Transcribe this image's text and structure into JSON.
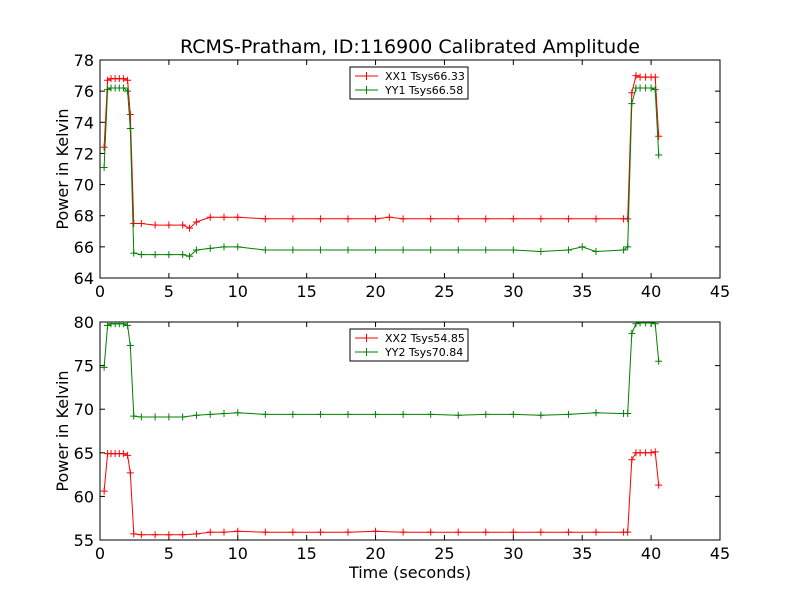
{
  "figure": {
    "title": "RCMS-Pratham, ID:116900 Calibrated Amplitude",
    "xlabel": "Time (seconds)"
  },
  "chart_data": [
    {
      "type": "line",
      "title": "RCMS-Pratham, ID:116900 Calibrated Amplitude",
      "xlabel": "",
      "ylabel": "Power in Kelvin",
      "xlim": [
        0,
        45
      ],
      "ylim": [
        64,
        78
      ],
      "xticks": [
        "0",
        "5",
        "10",
        "15",
        "20",
        "25",
        "30",
        "35",
        "40",
        "45"
      ],
      "yticks": [
        "64",
        "66",
        "68",
        "70",
        "72",
        "74",
        "76",
        "78"
      ],
      "grid": false,
      "legend_position": "top-center",
      "marker": "plus",
      "series": [
        {
          "name": "XX1 Tsys66.33",
          "color": "#ff0000",
          "x": [
            0.3,
            0.55,
            0.8,
            1.1,
            1.4,
            1.7,
            2.0,
            2.2,
            2.45,
            3.0,
            4.0,
            5.0,
            6.0,
            6.5,
            7.0,
            8.0,
            9.0,
            10.0,
            12.0,
            14.0,
            16.0,
            18.0,
            20.0,
            21.0,
            22.0,
            24.0,
            26.0,
            28.0,
            30.0,
            32.0,
            34.0,
            36.0,
            38.0,
            38.3,
            38.6,
            38.9,
            39.2,
            39.6,
            40.0,
            40.3,
            40.55
          ],
          "y": [
            72.4,
            76.7,
            76.8,
            76.8,
            76.8,
            76.8,
            76.7,
            74.5,
            67.5,
            67.5,
            67.4,
            67.4,
            67.4,
            67.2,
            67.6,
            67.9,
            67.9,
            67.9,
            67.8,
            67.8,
            67.8,
            67.8,
            67.8,
            67.9,
            67.8,
            67.8,
            67.8,
            67.8,
            67.8,
            67.8,
            67.8,
            67.8,
            67.8,
            67.8,
            75.9,
            77.0,
            76.9,
            76.9,
            76.9,
            76.9,
            73.1
          ]
        },
        {
          "name": "YY1 Tsys66.58",
          "color": "#008000",
          "x": [
            0.3,
            0.55,
            0.8,
            1.1,
            1.4,
            1.7,
            2.0,
            2.2,
            2.45,
            3.0,
            4.0,
            5.0,
            6.0,
            6.5,
            7.0,
            8.0,
            9.0,
            10.0,
            12.0,
            14.0,
            16.0,
            18.0,
            20.0,
            22.0,
            24.0,
            26.0,
            28.0,
            30.0,
            32.0,
            34.0,
            35.0,
            36.0,
            38.0,
            38.3,
            38.6,
            38.9,
            39.2,
            39.6,
            40.0,
            40.3,
            40.55
          ],
          "y": [
            71.1,
            76.1,
            76.2,
            76.2,
            76.2,
            76.2,
            76.0,
            73.6,
            65.6,
            65.5,
            65.5,
            65.5,
            65.5,
            65.4,
            65.8,
            65.9,
            66.0,
            66.0,
            65.8,
            65.8,
            65.8,
            65.8,
            65.8,
            65.8,
            65.8,
            65.8,
            65.8,
            65.8,
            65.7,
            65.8,
            66.0,
            65.7,
            65.8,
            66.0,
            75.2,
            76.2,
            76.2,
            76.2,
            76.2,
            76.1,
            71.9
          ]
        }
      ]
    },
    {
      "type": "line",
      "title": "",
      "xlabel": "Time (seconds)",
      "ylabel": "Power in Kelvin",
      "xlim": [
        0,
        45
      ],
      "ylim": [
        55,
        80
      ],
      "xticks": [
        "0",
        "5",
        "10",
        "15",
        "20",
        "25",
        "30",
        "35",
        "40",
        "45"
      ],
      "yticks": [
        "55",
        "60",
        "65",
        "70",
        "75",
        "80"
      ],
      "grid": false,
      "legend_position": "top-center",
      "marker": "plus",
      "series": [
        {
          "name": "XX2 Tsys54.85",
          "color": "#ff0000",
          "x": [
            0.3,
            0.55,
            0.8,
            1.1,
            1.4,
            1.7,
            2.0,
            2.2,
            2.45,
            3.0,
            4.0,
            5.0,
            6.0,
            7.0,
            8.0,
            9.0,
            10.0,
            12.0,
            14.0,
            16.0,
            18.0,
            20.0,
            22.0,
            24.0,
            26.0,
            28.0,
            30.0,
            32.0,
            34.0,
            36.0,
            38.0,
            38.3,
            38.6,
            38.9,
            39.2,
            39.6,
            40.0,
            40.3,
            40.55
          ],
          "y": [
            60.6,
            64.9,
            64.9,
            64.9,
            64.9,
            64.9,
            64.7,
            62.7,
            55.7,
            55.6,
            55.6,
            55.6,
            55.6,
            55.7,
            55.9,
            55.9,
            56.0,
            55.9,
            55.9,
            55.9,
            55.9,
            56.0,
            55.9,
            55.9,
            55.9,
            55.9,
            55.9,
            55.9,
            55.9,
            55.9,
            55.9,
            55.9,
            64.2,
            65.0,
            65.0,
            65.0,
            65.0,
            65.1,
            61.3
          ]
        },
        {
          "name": "YY2 Tsys70.84",
          "color": "#008000",
          "x": [
            0.3,
            0.55,
            0.8,
            1.1,
            1.4,
            1.7,
            2.0,
            2.2,
            2.45,
            3.0,
            4.0,
            5.0,
            6.0,
            7.0,
            8.0,
            9.0,
            10.0,
            12.0,
            14.0,
            16.0,
            18.0,
            20.0,
            22.0,
            24.0,
            26.0,
            28.0,
            30.0,
            32.0,
            34.0,
            36.0,
            38.0,
            38.3,
            38.6,
            38.9,
            39.2,
            39.6,
            40.0,
            40.3,
            40.55
          ],
          "y": [
            74.8,
            79.6,
            79.8,
            79.8,
            79.8,
            79.8,
            79.6,
            77.3,
            69.2,
            69.1,
            69.1,
            69.1,
            69.1,
            69.3,
            69.4,
            69.5,
            69.6,
            69.4,
            69.4,
            69.4,
            69.4,
            69.4,
            69.4,
            69.4,
            69.3,
            69.4,
            69.4,
            69.3,
            69.4,
            69.6,
            69.5,
            69.5,
            78.7,
            79.8,
            79.9,
            79.9,
            79.9,
            79.8,
            75.5
          ]
        }
      ]
    }
  ]
}
